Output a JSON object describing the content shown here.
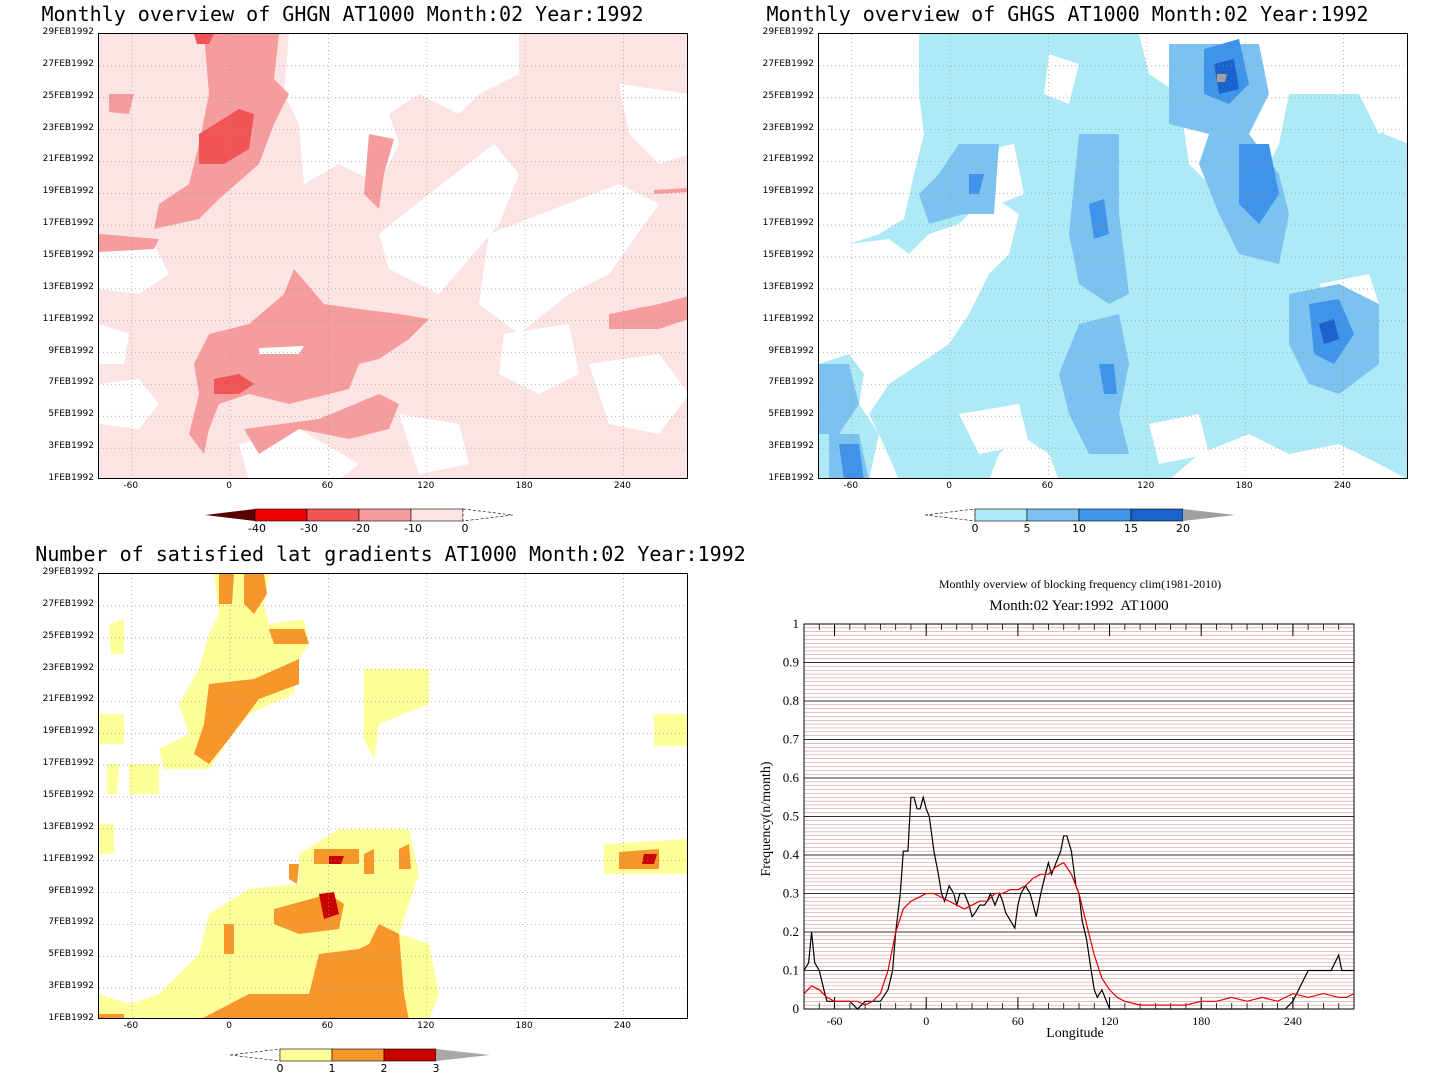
{
  "colors": {
    "red_scale": [
      "#5a0000",
      "#ee0000",
      "#f05454",
      "#f59c9c",
      "#fde4e4"
    ],
    "blue_scale": [
      "#aeeaf6",
      "#7cc2f0",
      "#3f94ea",
      "#1b62cc",
      "#a0a0a0"
    ],
    "orange_scale": [
      "#ffff9a",
      "#f7962a",
      "#c80000",
      "#a8a8a8"
    ],
    "black_line": "#000000",
    "red_line": "#e00000",
    "grid_red": "#c88080"
  },
  "y_date_ticks": [
    "1FEB1992",
    "3FEB1992",
    "5FEB1992",
    "7FEB1992",
    "9FEB1992",
    "11FEB1992",
    "13FEB1992",
    "15FEB1992",
    "17FEB1992",
    "19FEB1992",
    "21FEB1992",
    "23FEB1992",
    "25FEB1992",
    "27FEB1992",
    "29FEB1992"
  ],
  "x_lon_ticks": [
    "-60",
    "0",
    "60",
    "120",
    "180",
    "240"
  ],
  "panels": {
    "ghgn": {
      "title": "Monthly overview of GHGN AT1000 Month:02 Year:1992",
      "colorbar_labels": [
        "-40",
        "-30",
        "-20",
        "-10",
        "0"
      ]
    },
    "ghgs": {
      "title": "Monthly overview of GHGS AT1000 Month:02 Year:1992",
      "colorbar_labels": [
        "0",
        "5",
        "10",
        "15",
        "20"
      ]
    },
    "lat": {
      "title": "Number of satisfied lat gradients AT1000 Month:02 Year:1992",
      "colorbar_labels": [
        "0",
        "1",
        "2",
        "3"
      ]
    }
  },
  "chart_data": [
    {
      "type": "heatmap",
      "title": "Monthly overview of GHGN AT1000 Month:02 Year:1992",
      "x_range": [
        -80,
        280
      ],
      "y_range": [
        "1FEB1992",
        "29FEB1992"
      ],
      "levels": [
        -40,
        -30,
        -20,
        -10,
        0
      ]
    },
    {
      "type": "heatmap",
      "title": "Monthly overview of GHGS AT1000 Month:02 Year:1992",
      "x_range": [
        -80,
        280
      ],
      "y_range": [
        "1FEB1992",
        "29FEB1992"
      ],
      "levels": [
        0,
        5,
        10,
        15,
        20
      ]
    },
    {
      "type": "heatmap",
      "title": "Number of satisfied lat gradients AT1000 Month:02 Year:1992",
      "x_range": [
        -80,
        280
      ],
      "y_range": [
        "1FEB1992",
        "29FEB1992"
      ],
      "levels": [
        0,
        1,
        2,
        3
      ]
    },
    {
      "type": "line",
      "title": "Monthly overview of blocking frequency clim(1981-2010)",
      "subtitle": "Month:02 Year:1992  AT1000",
      "xlabel": "Longitude",
      "ylabel": "Frequency(n/month)",
      "xlim": [
        -80,
        280
      ],
      "ylim": [
        0,
        1
      ],
      "x_ticks": [
        "-60",
        "0",
        "60",
        "120",
        "180",
        "240"
      ],
      "y_ticks": [
        "0",
        "0.1",
        "0.2",
        "0.3",
        "0.4",
        "0.5",
        "0.6",
        "0.7",
        "0.8",
        "0.9",
        "1"
      ],
      "grid": true,
      "series": [
        {
          "color": "#000000",
          "x": [
            -80,
            -77,
            -75,
            -73,
            -70,
            -67,
            -65,
            -60,
            -55,
            -50,
            -45,
            -40,
            -35,
            -30,
            -25,
            -22,
            -20,
            -17,
            -15,
            -12,
            -10,
            -8,
            -6,
            -4,
            -2,
            0,
            2,
            5,
            8,
            10,
            12,
            15,
            18,
            20,
            22,
            25,
            28,
            30,
            32,
            35,
            38,
            40,
            42,
            45,
            48,
            50,
            52,
            55,
            58,
            60,
            62,
            65,
            68,
            70,
            72,
            75,
            78,
            80,
            82,
            85,
            88,
            90,
            92,
            95,
            98,
            100,
            102,
            105,
            108,
            110,
            112,
            115,
            118,
            120,
            122,
            125,
            130,
            140,
            150,
            160,
            170,
            180,
            190,
            200,
            210,
            220,
            230,
            235,
            240,
            250,
            260,
            262,
            265,
            270,
            272,
            275,
            280
          ],
          "y": [
            0.1,
            0.12,
            0.2,
            0.12,
            0.1,
            0.05,
            0.02,
            0.02,
            0.02,
            0.02,
            0.0,
            0.02,
            0.02,
            0.02,
            0.05,
            0.1,
            0.2,
            0.3,
            0.41,
            0.41,
            0.55,
            0.55,
            0.52,
            0.52,
            0.55,
            0.52,
            0.5,
            0.41,
            0.35,
            0.3,
            0.28,
            0.32,
            0.3,
            0.27,
            0.3,
            0.3,
            0.27,
            0.24,
            0.25,
            0.27,
            0.27,
            0.28,
            0.3,
            0.27,
            0.3,
            0.28,
            0.25,
            0.23,
            0.21,
            0.27,
            0.3,
            0.32,
            0.3,
            0.27,
            0.24,
            0.3,
            0.35,
            0.38,
            0.35,
            0.38,
            0.41,
            0.45,
            0.45,
            0.41,
            0.32,
            0.3,
            0.23,
            0.18,
            0.1,
            0.05,
            0.03,
            0.05,
            0.02,
            0.0,
            0.0,
            0.0,
            0.0,
            0.0,
            0.0,
            0.0,
            0.0,
            0.0,
            0.0,
            0.0,
            0.0,
            0.0,
            0.0,
            0.0,
            0.02,
            0.1,
            0.1,
            0.1,
            0.1,
            0.14,
            0.1,
            0.1,
            0.1
          ]
        },
        {
          "color": "#e00000",
          "x": [
            -80,
            -75,
            -70,
            -65,
            -60,
            -55,
            -50,
            -45,
            -40,
            -35,
            -30,
            -25,
            -20,
            -15,
            -10,
            -5,
            0,
            5,
            10,
            15,
            20,
            25,
            30,
            35,
            40,
            45,
            50,
            55,
            60,
            65,
            70,
            75,
            80,
            85,
            90,
            95,
            100,
            105,
            110,
            115,
            120,
            125,
            130,
            140,
            150,
            160,
            170,
            180,
            190,
            200,
            210,
            220,
            230,
            240,
            250,
            260,
            270,
            275,
            280
          ],
          "y": [
            0.04,
            0.06,
            0.05,
            0.03,
            0.02,
            0.02,
            0.02,
            0.02,
            0.01,
            0.02,
            0.04,
            0.1,
            0.2,
            0.26,
            0.28,
            0.29,
            0.3,
            0.3,
            0.29,
            0.28,
            0.27,
            0.26,
            0.27,
            0.28,
            0.28,
            0.3,
            0.3,
            0.31,
            0.31,
            0.32,
            0.34,
            0.35,
            0.35,
            0.37,
            0.38,
            0.35,
            0.3,
            0.22,
            0.14,
            0.08,
            0.05,
            0.03,
            0.02,
            0.01,
            0.01,
            0.01,
            0.01,
            0.02,
            0.02,
            0.03,
            0.02,
            0.03,
            0.02,
            0.04,
            0.03,
            0.04,
            0.03,
            0.03,
            0.04
          ]
        }
      ]
    }
  ]
}
